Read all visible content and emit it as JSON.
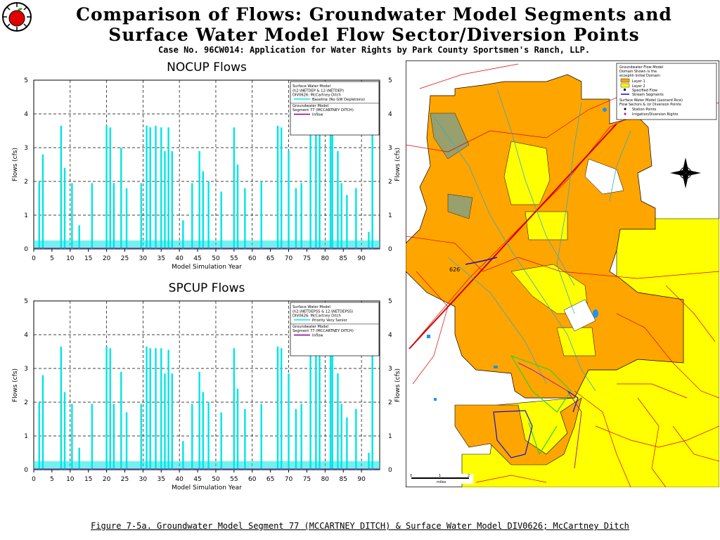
{
  "header": {
    "line1": "Comparison of Flows: Groundwater Model Segments and",
    "line2": "Surface Water Model Flow Sector/Diversion Points",
    "line3": "Case No. 96CW014: Application for Water Rights by Park County Sportsmen's Ranch, LLP."
  },
  "caption": "Figure 7-5a. Groundwater Model Segment 77 (MCCARTNEY DITCH) & Surface Water Model DIV0626; McCartney Ditch",
  "colors": {
    "surface": "#00e5e5",
    "groundwater": "#8b008b",
    "grid": "#000000"
  },
  "chart_data": [
    {
      "type": "bar",
      "title": "NOCUP Flows",
      "xlabel": "Model Simulation Year",
      "ylabel": "Flows (cfs)",
      "xlim": [
        0,
        95
      ],
      "ylim": [
        0,
        5
      ],
      "xticks": [
        "0",
        "5",
        "10",
        "15",
        "20",
        "25",
        "30",
        "35",
        "40",
        "45",
        "50",
        "55",
        "60",
        "65",
        "70",
        "75",
        "80",
        "85",
        "90"
      ],
      "yticks": [
        "0",
        "1",
        "2",
        "3",
        "4",
        "5"
      ],
      "legend": {
        "sw_lines": [
          "Surface Water Model",
          "(h2:\\NETDEP & 12:\\NETDEP)",
          "DIV0626: McCartney Ditch"
        ],
        "sw_series": "Baseline (No GW Depletions)",
        "gw_lines": [
          "Groundwater Model",
          "Segment 77 (MCCARTNEY DITCH)"
        ],
        "gw_series": "Inflow"
      },
      "series": [
        {
          "name": "Baseline (No GW Depletions)",
          "peaks": [
            [
              1.5,
              2.0
            ],
            [
              2.5,
              2.8
            ],
            [
              7.5,
              3.65
            ],
            [
              8.5,
              2.4
            ],
            [
              10.5,
              1.95
            ],
            [
              12.5,
              0.7
            ],
            [
              16,
              1.95
            ],
            [
              20,
              3.65
            ],
            [
              21,
              3.6
            ],
            [
              22,
              1.95
            ],
            [
              24,
              3.0
            ],
            [
              25.5,
              1.8
            ],
            [
              29.5,
              1.95
            ],
            [
              31,
              3.65
            ],
            [
              32,
              3.6
            ],
            [
              33.5,
              3.65
            ],
            [
              35,
              3.6
            ],
            [
              36,
              2.9
            ],
            [
              37,
              3.6
            ],
            [
              38,
              2.9
            ],
            [
              41,
              0.85
            ],
            [
              43.5,
              1.95
            ],
            [
              45.5,
              2.9
            ],
            [
              46.5,
              2.3
            ],
            [
              48,
              2.0
            ],
            [
              51.5,
              1.7
            ],
            [
              55,
              3.6
            ],
            [
              56,
              2.5
            ],
            [
              58,
              1.8
            ],
            [
              62.5,
              2.0
            ],
            [
              67,
              3.65
            ],
            [
              68,
              3.6
            ],
            [
              70,
              2.9
            ],
            [
              72,
              1.8
            ],
            [
              73.5,
              1.95
            ],
            [
              76,
              3.6
            ],
            [
              77.5,
              3.65
            ],
            [
              78.5,
              3.6
            ],
            [
              81.5,
              3.6
            ],
            [
              82,
              3.6
            ],
            [
              83.5,
              2.9
            ],
            [
              84.5,
              1.95
            ],
            [
              86,
              1.6
            ],
            [
              88.5,
              1.8
            ],
            [
              92,
              0.5
            ],
            [
              93,
              3.45
            ]
          ]
        },
        {
          "name": "Inflow",
          "value": 0.02
        }
      ]
    },
    {
      "type": "bar",
      "title": "SPCUP Flows",
      "xlabel": "Model Simulation Year",
      "ylabel": "Flows (cfs)",
      "xlim": [
        0,
        95
      ],
      "ylim": [
        0,
        5
      ],
      "xticks": [
        "0",
        "5",
        "10",
        "15",
        "20",
        "25",
        "30",
        "35",
        "40",
        "45",
        "50",
        "55",
        "60",
        "65",
        "70",
        "75",
        "80",
        "85",
        "90"
      ],
      "yticks": [
        "0",
        "1",
        "2",
        "3",
        "4",
        "5"
      ],
      "legend": {
        "sw_lines": [
          "Surface Water Model",
          "(h2:\\NETDEPSS & 12:\\NETDEPSS)",
          "DIV0626: McCartney Ditch"
        ],
        "sw_series": "Priority Very Senior",
        "gw_lines": [
          "Groundwater Model",
          "Segment 77 (MCCARTNEY DITCH)"
        ],
        "gw_series": "Inflow"
      },
      "series": [
        {
          "name": "Priority Very Senior",
          "peaks": [
            [
              1.5,
              2.0
            ],
            [
              2.5,
              2.8
            ],
            [
              7.5,
              3.65
            ],
            [
              8.5,
              2.3
            ],
            [
              10.5,
              1.95
            ],
            [
              12.5,
              0.65
            ],
            [
              16,
              1.95
            ],
            [
              20,
              3.65
            ],
            [
              21,
              3.6
            ],
            [
              22,
              1.95
            ],
            [
              24,
              2.9
            ],
            [
              25.5,
              1.7
            ],
            [
              29.5,
              1.95
            ],
            [
              31,
              3.65
            ],
            [
              32,
              3.6
            ],
            [
              33.5,
              3.6
            ],
            [
              35,
              3.6
            ],
            [
              36,
              2.85
            ],
            [
              37,
              3.55
            ],
            [
              38,
              2.85
            ],
            [
              41,
              0.85
            ],
            [
              43.5,
              1.95
            ],
            [
              45.5,
              2.9
            ],
            [
              46.5,
              2.3
            ],
            [
              48,
              2.0
            ],
            [
              51.5,
              1.7
            ],
            [
              55,
              3.6
            ],
            [
              56,
              2.4
            ],
            [
              58,
              1.8
            ],
            [
              62.5,
              1.95
            ],
            [
              67,
              3.65
            ],
            [
              68,
              3.6
            ],
            [
              70,
              2.85
            ],
            [
              72,
              1.8
            ],
            [
              73.5,
              1.95
            ],
            [
              76,
              3.6
            ],
            [
              77.5,
              3.65
            ],
            [
              78.5,
              3.6
            ],
            [
              81.5,
              3.6
            ],
            [
              82,
              3.6
            ],
            [
              83.5,
              2.85
            ],
            [
              84.5,
              1.95
            ],
            [
              86,
              1.55
            ],
            [
              88.5,
              1.8
            ],
            [
              92,
              0.5
            ],
            [
              93,
              3.45
            ]
          ]
        },
        {
          "name": "Inflow",
          "value": 0.02
        }
      ]
    }
  ],
  "map": {
    "legend_title": [
      "Groundwater Flow Model",
      "Domain Shown is the",
      "ecosphh Initial Domain:"
    ],
    "legend_items": [
      "Layer 1",
      "Layer 2",
      "Specified Flow",
      "Stream Segments"
    ],
    "legend_sw_title": [
      "Surface Water Model (Leonard Rice)",
      "Flow Sectors & /or Diversion Points:"
    ],
    "legend_sw_items": [
      "Station Points",
      "Irrigation/Diversion Rights"
    ],
    "label_626": "626",
    "scale_labels": [
      "0",
      "1",
      "2"
    ],
    "scale_unit": "miles"
  }
}
